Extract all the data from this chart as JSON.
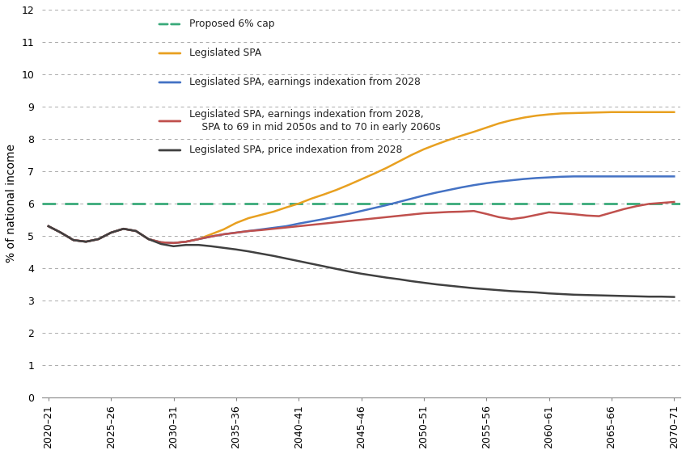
{
  "ylabel": "% of national income",
  "ylim": [
    0,
    12
  ],
  "yticks": [
    0,
    1,
    2,
    3,
    4,
    5,
    6,
    7,
    8,
    9,
    10,
    11,
    12
  ],
  "xtick_labels": [
    "2020–21",
    "2025–26",
    "2030–31",
    "2035–36",
    "2040–41",
    "2045–46",
    "2050–51",
    "2055–56",
    "2060–61",
    "2065–66",
    "2070–71"
  ],
  "xtick_positions": [
    0,
    5,
    10,
    15,
    20,
    25,
    30,
    35,
    40,
    45,
    50
  ],
  "proposed_cap_y": 6.0,
  "proposed_cap_color": "#3aaa7a",
  "legislated_spa_color": "#E8A020",
  "earnings_index_color": "#4472C4",
  "earnings_spa69_70_color": "#C0504D",
  "price_index_color": "#404040",
  "legend_entries": [
    {
      "label": "Proposed 6% cap",
      "color": "#3aaa7a",
      "linestyle": "--",
      "y_data": 11.55
    },
    {
      "label": "Legislated SPA",
      "color": "#E8A020",
      "linestyle": "-",
      "y_data": 10.65
    },
    {
      "label": "Legislated SPA, earnings indexation from 2028",
      "color": "#4472C4",
      "linestyle": "-",
      "y_data": 9.75
    },
    {
      "label": "Legislated SPA, earnings indexation from 2028,\n    SPA to 69 in mid 2050s and to 70 in early 2060s",
      "color": "#C0504D",
      "linestyle": "-",
      "y_data": 8.55
    },
    {
      "label": "Legislated SPA, price indexation from 2028",
      "color": "#404040",
      "linestyle": "-",
      "y_data": 7.65
    }
  ],
  "x": [
    0,
    1,
    2,
    3,
    4,
    5,
    6,
    7,
    8,
    9,
    10,
    11,
    12,
    13,
    14,
    15,
    16,
    17,
    18,
    19,
    20,
    21,
    22,
    23,
    24,
    25,
    26,
    27,
    28,
    29,
    30,
    31,
    32,
    33,
    34,
    35,
    36,
    37,
    38,
    39,
    40,
    41,
    42,
    43,
    44,
    45,
    46,
    47,
    48,
    49,
    50
  ],
  "legislated_spa": [
    5.3,
    5.1,
    4.87,
    4.82,
    4.9,
    5.1,
    5.22,
    5.15,
    4.9,
    4.8,
    4.78,
    4.82,
    4.9,
    5.05,
    5.2,
    5.4,
    5.55,
    5.65,
    5.75,
    5.88,
    6.0,
    6.15,
    6.28,
    6.42,
    6.58,
    6.75,
    6.92,
    7.1,
    7.3,
    7.5,
    7.68,
    7.83,
    7.97,
    8.1,
    8.22,
    8.35,
    8.48,
    8.58,
    8.66,
    8.72,
    8.76,
    8.79,
    8.8,
    8.81,
    8.82,
    8.83,
    8.83,
    8.83,
    8.83,
    8.83,
    8.83
  ],
  "earnings_index": [
    5.3,
    5.1,
    4.87,
    4.82,
    4.9,
    5.1,
    5.22,
    5.15,
    4.9,
    4.8,
    4.78,
    4.82,
    4.9,
    4.98,
    5.05,
    5.1,
    5.15,
    5.2,
    5.25,
    5.3,
    5.38,
    5.45,
    5.52,
    5.6,
    5.68,
    5.77,
    5.86,
    5.95,
    6.05,
    6.15,
    6.25,
    6.34,
    6.42,
    6.5,
    6.57,
    6.63,
    6.68,
    6.72,
    6.76,
    6.79,
    6.81,
    6.83,
    6.84,
    6.84,
    6.84,
    6.84,
    6.84,
    6.84,
    6.84,
    6.84,
    6.84
  ],
  "earnings_spa69_70": [
    5.3,
    5.1,
    4.87,
    4.82,
    4.9,
    5.1,
    5.22,
    5.15,
    4.9,
    4.8,
    4.78,
    4.82,
    4.9,
    4.98,
    5.05,
    5.1,
    5.15,
    5.18,
    5.22,
    5.26,
    5.3,
    5.34,
    5.38,
    5.42,
    5.46,
    5.5,
    5.54,
    5.58,
    5.62,
    5.66,
    5.7,
    5.72,
    5.74,
    5.75,
    5.77,
    5.68,
    5.58,
    5.52,
    5.57,
    5.65,
    5.73,
    5.7,
    5.67,
    5.63,
    5.61,
    5.72,
    5.83,
    5.92,
    5.99,
    6.02,
    6.05
  ],
  "price_index": [
    5.3,
    5.1,
    4.87,
    4.82,
    4.9,
    5.1,
    5.22,
    5.15,
    4.9,
    4.75,
    4.68,
    4.72,
    4.72,
    4.68,
    4.63,
    4.58,
    4.52,
    4.45,
    4.38,
    4.3,
    4.22,
    4.14,
    4.06,
    3.98,
    3.9,
    3.83,
    3.77,
    3.71,
    3.66,
    3.6,
    3.55,
    3.5,
    3.46,
    3.42,
    3.38,
    3.35,
    3.32,
    3.29,
    3.27,
    3.25,
    3.22,
    3.2,
    3.18,
    3.17,
    3.16,
    3.15,
    3.14,
    3.13,
    3.12,
    3.12,
    3.11
  ]
}
